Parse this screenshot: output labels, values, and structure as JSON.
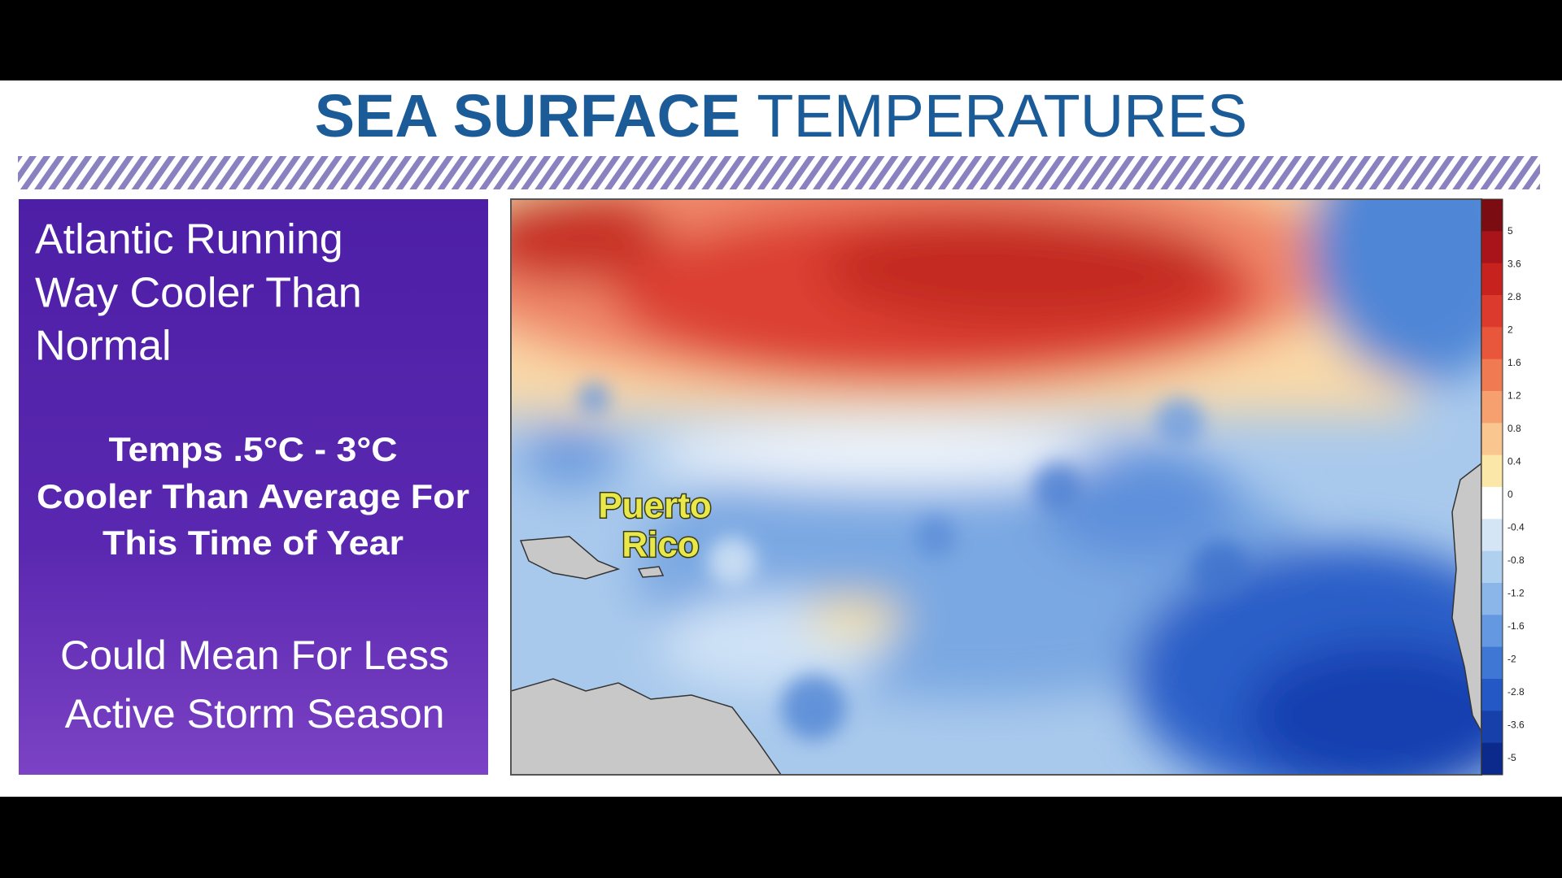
{
  "header": {
    "title_bold": "SEA SURFACE",
    "title_regular": "TEMPERATURES"
  },
  "panel": {
    "headline": [
      "Atlantic Running",
      "Way Cooler Than",
      "Normal"
    ],
    "detail": [
      "Temps .5°C - 3°C",
      "Cooler Than Average For",
      "This Time of Year"
    ],
    "footer": [
      "Could Mean For Less",
      "Active Storm Season"
    ]
  },
  "map": {
    "label": [
      "Puerto",
      "Rico"
    ],
    "legend": {
      "ticks": [
        "5",
        "3.6",
        "2.8",
        "2",
        "1.6",
        "1.2",
        "0.8",
        "0.4",
        "0",
        "-0.4",
        "-0.8",
        "-1.2",
        "-1.6",
        "-2",
        "-2.8",
        "-3.6",
        "-5"
      ]
    }
  }
}
